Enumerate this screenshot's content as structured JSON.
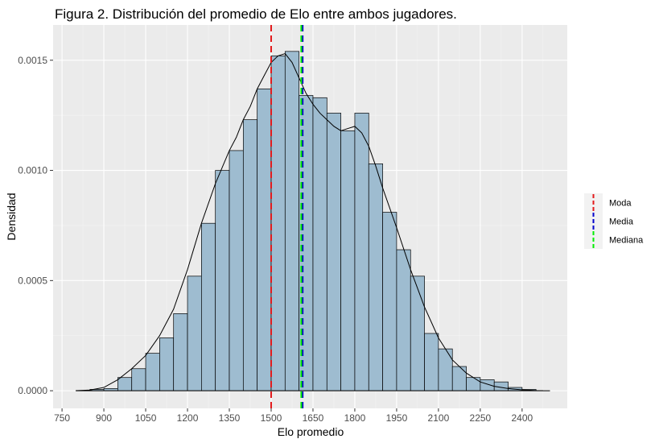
{
  "chart_data": {
    "type": "bar",
    "title": "Figura 2. Distribución del promedio de Elo entre ambos jugadores.",
    "xlabel": "Elo promedio",
    "ylabel": "Densidad",
    "xlim": [
      718,
      2562
    ],
    "ylim": [
      -8e-05,
      0.00166
    ],
    "x_ticks": [
      750,
      900,
      1050,
      1200,
      1350,
      1500,
      1650,
      1800,
      1950,
      2100,
      2250,
      2400
    ],
    "x_tick_labels": [
      "750",
      "900",
      "1050",
      "1200",
      "1350",
      "1500",
      "1650",
      "1800",
      "1950",
      "2100",
      "2250",
      "2400"
    ],
    "y_ticks": [
      0,
      0.0005,
      0.001,
      0.0015
    ],
    "y_tick_labels": [
      "0.0000",
      "0.0005",
      "0.0010",
      "0.0015"
    ],
    "grid": true,
    "histogram": {
      "bin_edges": [
        800,
        850,
        900,
        950,
        1000,
        1050,
        1100,
        1150,
        1200,
        1250,
        1300,
        1350,
        1400,
        1450,
        1500,
        1550,
        1600,
        1650,
        1700,
        1750,
        1800,
        1850,
        1900,
        1950,
        2000,
        2050,
        2100,
        2150,
        2200,
        2250,
        2300,
        2350,
        2400,
        2450
      ],
      "density": [
        1e-06,
        6e-06,
        1e-05,
        6e-05,
        0.0001,
        0.00017,
        0.00024,
        0.00035,
        0.00052,
        0.00076,
        0.001,
        0.00109,
        0.00123,
        0.00137,
        0.00152,
        0.00154,
        0.00134,
        0.00133,
        0.00126,
        0.00118,
        0.00126,
        0.00103,
        0.00081,
        0.00064,
        0.00052,
        0.00026,
        0.00019,
        0.00011,
        6e-05,
        5e-05,
        4e-05,
        1.5e-05,
        6e-06
      ],
      "fill_color": "#9ebcd0",
      "edge_color": "#000000"
    },
    "density_curve": {
      "x": [
        800,
        850,
        900,
        950,
        1000,
        1050,
        1100,
        1150,
        1200,
        1250,
        1300,
        1350,
        1375,
        1400,
        1425,
        1450,
        1475,
        1500,
        1525,
        1550,
        1575,
        1600,
        1625,
        1650,
        1675,
        1700,
        1725,
        1750,
        1775,
        1800,
        1825,
        1850,
        1875,
        1900,
        1950,
        2000,
        2050,
        2100,
        2150,
        2200,
        2250,
        2300,
        2350,
        2400,
        2450,
        2475
      ],
      "y": [
        5e-07,
        3e-06,
        1.5e-05,
        5e-05,
        0.0001,
        0.00016,
        0.00025,
        0.00037,
        0.00055,
        0.00076,
        0.00094,
        0.00109,
        0.00115,
        0.00123,
        0.00129,
        0.00137,
        0.00143,
        0.00149,
        0.00152,
        0.00153,
        0.00149,
        0.00142,
        0.00135,
        0.0013,
        0.00126,
        0.00123,
        0.0012,
        0.00118,
        0.00119,
        0.0012,
        0.00117,
        0.00111,
        0.00102,
        0.00092,
        0.00074,
        0.00055,
        0.00038,
        0.00024,
        0.00014,
        8e-05,
        4e-05,
        2e-05,
        1e-05,
        4e-06,
        1e-06,
        5e-07
      ],
      "color": "#000000"
    },
    "vertical_lines": [
      {
        "name": "Moda",
        "x": 1500,
        "color": "#e31a1c"
      },
      {
        "name": "Media",
        "x": 1613,
        "color": "#0000cc"
      },
      {
        "name": "Mediana",
        "x": 1608,
        "color": "#00ee00"
      }
    ],
    "legend": {
      "placement": "right",
      "entries": [
        "Moda",
        "Media",
        "Mediana"
      ]
    },
    "baseline_range": [
      800,
      2500
    ]
  }
}
